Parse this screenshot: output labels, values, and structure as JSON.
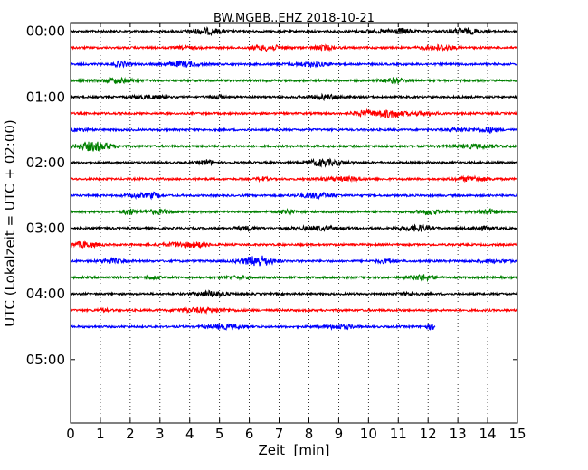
{
  "chart_data": {
    "type": "line",
    "title": "BW.MGBB..EHZ 2018-10-21",
    "xlabel": "Zeit  [min]",
    "ylabel": "UTC (Lokalzeit = UTC + 02:00)",
    "xlim": [
      0,
      15
    ],
    "x_ticks": [
      "0",
      "1",
      "2",
      "3",
      "4",
      "5",
      "6",
      "7",
      "8",
      "9",
      "10",
      "11",
      "12",
      "13",
      "14",
      "15"
    ],
    "y_tick_labels": [
      "00:00",
      "01:00",
      "02:00",
      "03:00",
      "04:00",
      "05:00"
    ],
    "y_tick_minutes": [
      0,
      60,
      120,
      180,
      240,
      300
    ],
    "ylim_minutes": [
      -8,
      358
    ],
    "trace_interval_min": 15,
    "trace_colors": [
      "#000000",
      "#ff0000",
      "#0000ff",
      "#008000"
    ],
    "grid": "vertical dotted",
    "traces": [
      {
        "start_min": 0,
        "end_x": 15
      },
      {
        "start_min": 15,
        "end_x": 15
      },
      {
        "start_min": 30,
        "end_x": 15
      },
      {
        "start_min": 45,
        "end_x": 15
      },
      {
        "start_min": 60,
        "end_x": 15
      },
      {
        "start_min": 75,
        "end_x": 15
      },
      {
        "start_min": 90,
        "end_x": 15
      },
      {
        "start_min": 105,
        "end_x": 15
      },
      {
        "start_min": 120,
        "end_x": 15
      },
      {
        "start_min": 135,
        "end_x": 15
      },
      {
        "start_min": 150,
        "end_x": 15
      },
      {
        "start_min": 165,
        "end_x": 15
      },
      {
        "start_min": 180,
        "end_x": 15
      },
      {
        "start_min": 195,
        "end_x": 15
      },
      {
        "start_min": 210,
        "end_x": 15
      },
      {
        "start_min": 225,
        "end_x": 15
      },
      {
        "start_min": 240,
        "end_x": 15
      },
      {
        "start_min": 255,
        "end_x": 15
      },
      {
        "start_min": 270,
        "end_x": 12.25
      }
    ]
  }
}
